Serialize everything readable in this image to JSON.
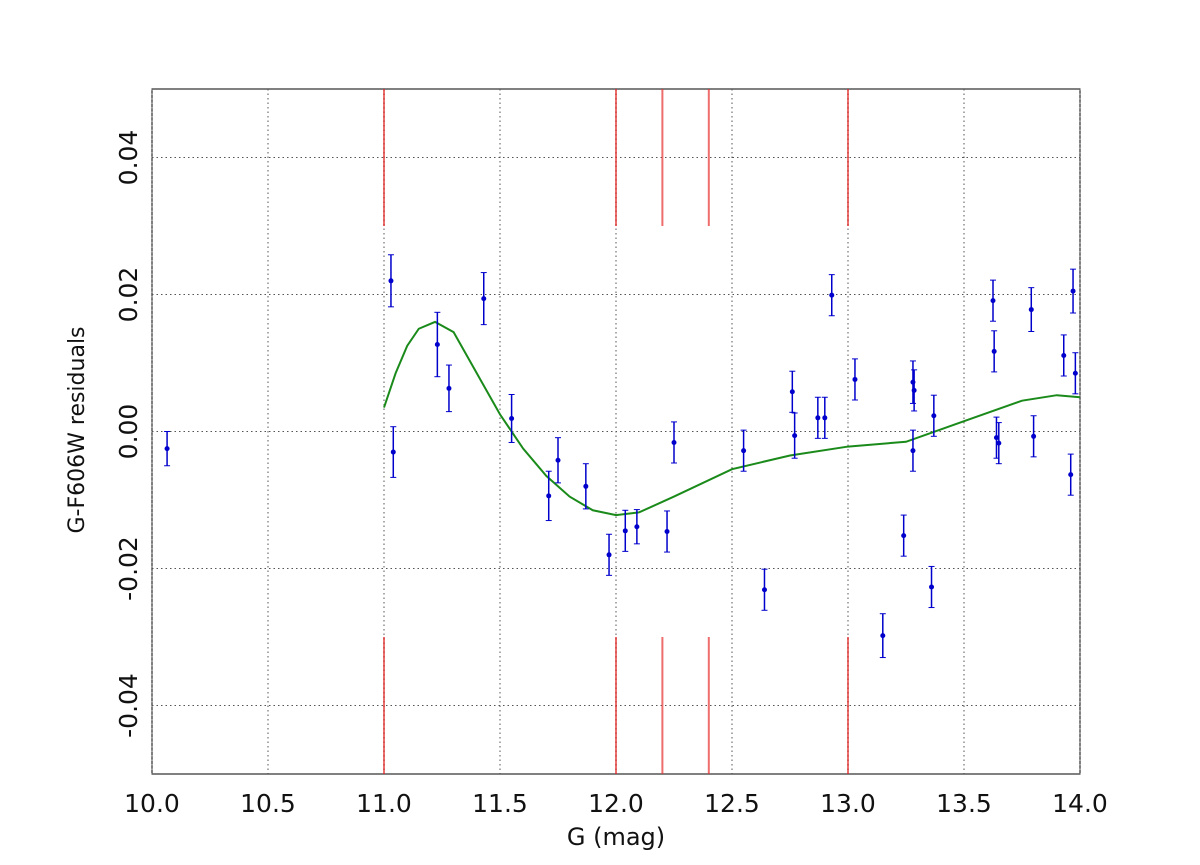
{
  "chart_data": {
    "type": "scatter",
    "xlabel": "G (mag)",
    "ylabel": "G-F606W residuals",
    "xlim": [
      10.0,
      14.0
    ],
    "ylim": [
      -0.05,
      0.05
    ],
    "xticks": [
      {
        "value": 10.0,
        "label": "10.0"
      },
      10.5,
      {
        "value": 11.0,
        "label": "11.0"
      },
      11.5,
      {
        "value": 12.0,
        "label": "12.0"
      },
      12.5,
      {
        "value": 13.0,
        "label": "13.0"
      },
      13.5,
      {
        "value": 14.0,
        "label": "14.0"
      }
    ],
    "yticks": [
      -0.04,
      -0.02,
      {
        "value": 0,
        "label": "0.00"
      },
      0.02,
      0.04
    ],
    "grid": true,
    "color": "#0000cc",
    "x": [
      10.065,
      11.03,
      11.04,
      11.23,
      11.28,
      11.43,
      11.55,
      11.71,
      11.75,
      11.87,
      11.97,
      12.04,
      12.09,
      12.22,
      12.25,
      12.55,
      12.64,
      12.76,
      12.77,
      12.87,
      12.9,
      12.93,
      13.03,
      13.15,
      13.24,
      13.28,
      13.285,
      13.28,
      13.36,
      13.37,
      13.625,
      13.63,
      13.64,
      13.65,
      13.79,
      13.8,
      13.93,
      13.96,
      13.97,
      13.98
    ],
    "values": [
      -0.0025,
      0.022,
      -0.003,
      0.0127,
      0.0063,
      0.0194,
      0.0019,
      -0.0094,
      -0.0042,
      -0.008,
      -0.018,
      -0.0145,
      -0.0139,
      -0.0146,
      -0.0016,
      -0.0028,
      -0.0231,
      0.0058,
      -0.0006,
      0.002,
      0.002,
      0.0199,
      0.0076,
      -0.0298,
      -0.0152,
      0.0072,
      0.006,
      -0.0028,
      -0.0227,
      0.0023,
      0.0191,
      0.0117,
      -0.0009,
      -0.0017,
      0.0178,
      -0.0007,
      0.0111,
      -0.0063,
      0.0205,
      0.0085
    ],
    "errors": [
      0.0025,
      0.0038,
      0.0037,
      0.0047,
      0.0034,
      0.0038,
      0.0035,
      0.0036,
      0.0033,
      0.0033,
      0.003,
      0.003,
      0.0025,
      0.003,
      0.003,
      0.003,
      0.003,
      0.003,
      0.0033,
      0.003,
      0.003,
      0.003,
      0.003,
      0.0032,
      0.003,
      0.0031,
      0.003,
      0.003,
      0.003,
      0.003,
      0.003,
      0.003,
      0.003,
      0.003,
      0.0032,
      0.003,
      0.003,
      0.003,
      0.0032,
      0.003
    ],
    "fit": {
      "type": "line",
      "color": "#1a8a1a",
      "x": [
        11.0,
        11.05,
        11.1,
        11.15,
        11.22,
        11.3,
        11.4,
        11.5,
        11.6,
        11.7,
        11.8,
        11.9,
        12.0,
        12.1,
        12.25,
        12.5,
        12.75,
        13.0,
        13.25,
        13.5,
        13.75,
        13.9,
        14.0
      ],
      "values": [
        0.0035,
        0.0085,
        0.0125,
        0.015,
        0.016,
        0.0145,
        0.0085,
        0.0025,
        -0.0025,
        -0.0065,
        -0.0095,
        -0.0115,
        -0.0122,
        -0.0118,
        -0.0095,
        -0.0055,
        -0.0035,
        -0.0022,
        -0.0015,
        0.0015,
        0.0045,
        0.0053,
        0.005
      ]
    },
    "red_lines": {
      "color": "#e83030",
      "x": [
        11.0,
        12.0,
        12.2,
        12.4,
        13.0
      ],
      "top": [
        0.03,
        0.05
      ],
      "bottom": [
        -0.05,
        -0.03
      ]
    }
  }
}
